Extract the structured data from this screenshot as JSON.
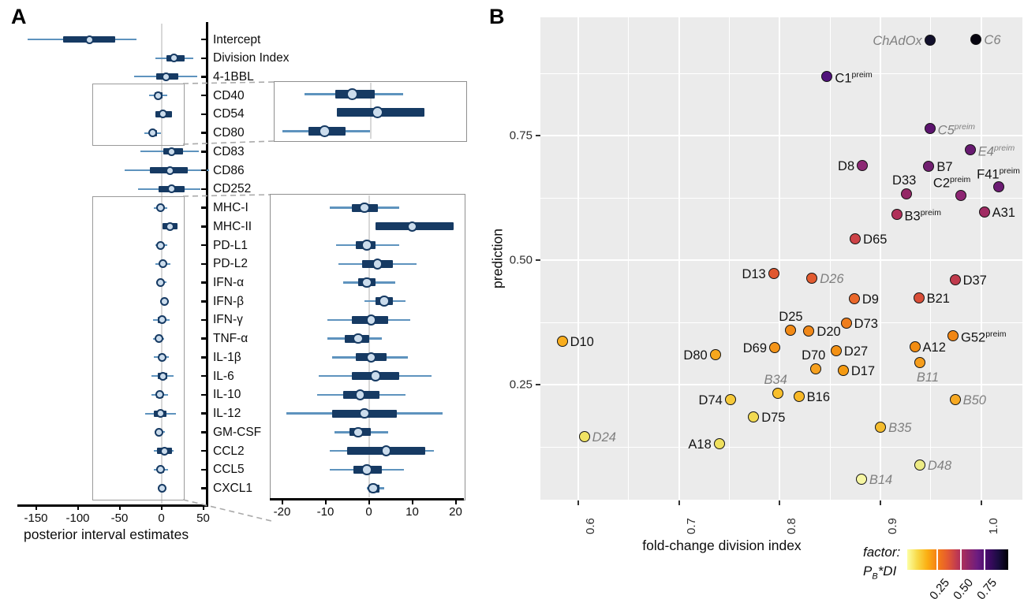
{
  "figure": {
    "panel_a_label": "A",
    "panel_b_label": "B"
  },
  "chart_data": [
    {
      "type": "forest",
      "panel": "A",
      "xlabel": "posterior interval estimates",
      "x_ticks": [
        "-150",
        "-100",
        "-50",
        "0",
        "50"
      ],
      "inset_x_ticks": [
        "-20",
        "-10",
        "0",
        "10",
        "20"
      ],
      "colors": {
        "bar": "#163a63",
        "whisker": "#5e93be",
        "dot_fill": "#cbdcec"
      },
      "rows": [
        {
          "label": "Intercept",
          "median": -86,
          "ci50": [
            -117,
            -55
          ],
          "ci95": [
            -160,
            -30
          ]
        },
        {
          "label": "Division Index",
          "median": 15,
          "ci50": [
            6,
            28
          ],
          "ci95": [
            -7,
            38
          ]
        },
        {
          "label": "4-1BBL",
          "median": 6,
          "ci50": [
            -6,
            20
          ],
          "ci95": [
            -33,
            43
          ]
        },
        {
          "label": "CD40",
          "median": -4,
          "ci50": [
            -8,
            1
          ],
          "ci95": [
            -15,
            7.5
          ],
          "inset": "top"
        },
        {
          "label": "CD54",
          "median": 1.8,
          "ci50": [
            -7.5,
            12.5
          ],
          "ci95": [
            -7.5,
            12.5
          ],
          "inset": "top"
        },
        {
          "label": "CD80",
          "median": -10.3,
          "ci50": [
            -14,
            -5.5
          ],
          "ci95": [
            -20,
            0
          ],
          "inset": "top"
        },
        {
          "label": "CD83",
          "median": 12,
          "ci50": [
            2,
            26
          ],
          "ci95": [
            -25,
            45
          ]
        },
        {
          "label": "CD86",
          "median": 10,
          "ci50": [
            -14,
            32
          ],
          "ci95": [
            -44,
            57
          ]
        },
        {
          "label": "CD252",
          "median": 12,
          "ci50": [
            -3,
            28
          ],
          "ci95": [
            -28,
            47
          ]
        },
        {
          "label": "MHC-I",
          "median": -1,
          "ci50": [
            -4,
            2
          ],
          "ci95": [
            -9,
            7
          ],
          "inset": "bottom"
        },
        {
          "label": "MHC-II",
          "median": 10,
          "ci50": [
            1.5,
            19.5
          ],
          "ci95": [
            1.5,
            19.5
          ],
          "inset": "bottom"
        },
        {
          "label": "PD-L1",
          "median": -0.5,
          "ci50": [
            -3,
            1.5
          ],
          "ci95": [
            -7.5,
            7
          ],
          "inset": "bottom"
        },
        {
          "label": "PD-L2",
          "median": 2,
          "ci50": [
            -1.5,
            5.5
          ],
          "ci95": [
            -7,
            11
          ],
          "inset": "bottom"
        },
        {
          "label": "IFN-α",
          "median": -0.5,
          "ci50": [
            -2.5,
            1.5
          ],
          "ci95": [
            -6,
            6
          ],
          "inset": "bottom"
        },
        {
          "label": "IFN-β",
          "median": 3.5,
          "ci50": [
            1.5,
            5.5
          ],
          "ci95": [
            -1,
            8.5
          ],
          "inset": "bottom"
        },
        {
          "label": "IFN-γ",
          "median": 0.5,
          "ci50": [
            -4,
            4.5
          ],
          "ci95": [
            -9.5,
            9.5
          ],
          "inset": "bottom"
        },
        {
          "label": "TNF-α",
          "median": -2.5,
          "ci50": [
            -5.5,
            0
          ],
          "ci95": [
            -9.5,
            3
          ],
          "inset": "bottom"
        },
        {
          "label": "IL-1β",
          "median": 0.5,
          "ci50": [
            -3,
            4
          ],
          "ci95": [
            -8.5,
            9
          ],
          "inset": "bottom"
        },
        {
          "label": "IL-6",
          "median": 1.5,
          "ci50": [
            -4,
            7
          ],
          "ci95": [
            -11.5,
            14.5
          ],
          "inset": "bottom"
        },
        {
          "label": "IL-10",
          "median": -2,
          "ci50": [
            -6,
            2.5
          ],
          "ci95": [
            -12,
            8.5
          ],
          "inset": "bottom"
        },
        {
          "label": "IL-12",
          "median": -1,
          "ci50": [
            -8.5,
            6.5
          ],
          "ci95": [
            -19,
            17
          ],
          "inset": "bottom"
        },
        {
          "label": "GM-CSF",
          "median": -2.5,
          "ci50": [
            -4.5,
            0.5
          ],
          "ci95": [
            -8,
            4.5
          ],
          "inset": "bottom"
        },
        {
          "label": "CCL2",
          "median": 4,
          "ci50": [
            -5,
            13
          ],
          "ci95": [
            -9,
            15
          ],
          "inset": "bottom"
        },
        {
          "label": "CCL5",
          "median": -0.5,
          "ci50": [
            -3.5,
            3
          ],
          "ci95": [
            -9,
            8
          ],
          "inset": "bottom"
        },
        {
          "label": "CXCL1",
          "median": 1,
          "ci50": [
            0,
            2.5
          ],
          "ci95": [
            -0.5,
            3.5
          ],
          "inset": "bottom"
        }
      ]
    },
    {
      "type": "scatter",
      "panel": "B",
      "xlabel": "fold-change division index",
      "ylabel": "prediction",
      "x_ticks": [
        "0.6",
        "0.7",
        "0.8",
        "0.9",
        "1.0"
      ],
      "y_ticks": [
        "0.25",
        "0.50",
        "0.75"
      ],
      "xlim": [
        0.562,
        1.041
      ],
      "ylim": [
        0.02,
        0.985
      ],
      "panel_bg": "#ebebeb",
      "point_outline": "#141414",
      "legend": {
        "title_line1": "factor:",
        "title2_p": "P",
        "title2_sub": "B",
        "title2_rest": "*DI",
        "ticks": [
          "0.25",
          "0.50",
          "0.75"
        ],
        "gradient": [
          "#fcffa4",
          "#f8d948",
          "#fbae12",
          "#f57d15",
          "#e45a31",
          "#bc3754",
          "#932667",
          "#6a1c81",
          "#420a68",
          "#1b0c41",
          "#000004"
        ]
      },
      "points": [
        {
          "label": "ChAdOx",
          "sup": "",
          "x": 0.949,
          "y": 0.941,
          "color": "#12102c",
          "pos": "left",
          "muted": true
        },
        {
          "label": "C6",
          "sup": "",
          "x": 0.995,
          "y": 0.943,
          "color": "#06040f",
          "pos": "right",
          "muted": true
        },
        {
          "label": "C1",
          "sup": "preim",
          "x": 0.847,
          "y": 0.869,
          "color": "#50127b",
          "pos": "right",
          "muted": false
        },
        {
          "label": "C5",
          "sup": "preim",
          "x": 0.949,
          "y": 0.764,
          "color": "#5c136e",
          "pos": "right",
          "muted": true
        },
        {
          "label": "E4",
          "sup": "preim",
          "x": 0.989,
          "y": 0.722,
          "color": "#671970",
          "pos": "right",
          "muted": true
        },
        {
          "label": "D8",
          "sup": "",
          "x": 0.882,
          "y": 0.69,
          "color": "#8c2974",
          "pos": "left",
          "muted": false
        },
        {
          "label": "B7",
          "sup": "",
          "x": 0.948,
          "y": 0.688,
          "color": "#711f70",
          "pos": "right",
          "muted": false
        },
        {
          "label": "D33",
          "sup": "",
          "x": 0.926,
          "y": 0.633,
          "color": "#942766",
          "pos": "above-left",
          "muted": false
        },
        {
          "label": "C2",
          "sup": "preim",
          "x": 0.98,
          "y": 0.63,
          "color": "#8e2573",
          "pos": "above-left",
          "muted": false
        },
        {
          "label": "F41",
          "sup": "preim",
          "x": 1.017,
          "y": 0.647,
          "color": "#6c1b73",
          "pos": "above",
          "muted": false
        },
        {
          "label": "B3",
          "sup": "preim",
          "x": 0.916,
          "y": 0.592,
          "color": "#b03059",
          "pos": "right",
          "muted": false
        },
        {
          "label": "A31",
          "sup": "",
          "x": 1.003,
          "y": 0.597,
          "color": "#a02b63",
          "pos": "right",
          "muted": false
        },
        {
          "label": "D65",
          "sup": "",
          "x": 0.875,
          "y": 0.543,
          "color": "#cd4247",
          "pos": "right",
          "muted": false
        },
        {
          "label": "D13",
          "sup": "",
          "x": 0.794,
          "y": 0.473,
          "color": "#e0572f",
          "pos": "left",
          "muted": false
        },
        {
          "label": "D26",
          "sup": "",
          "x": 0.832,
          "y": 0.464,
          "color": "#e25b30",
          "pos": "right",
          "muted": true
        },
        {
          "label": "D37",
          "sup": "",
          "x": 0.974,
          "y": 0.46,
          "color": "#c03a4c",
          "pos": "right",
          "muted": false
        },
        {
          "label": "D9",
          "sup": "",
          "x": 0.874,
          "y": 0.422,
          "color": "#ea672a",
          "pos": "right",
          "muted": false
        },
        {
          "label": "B21",
          "sup": "",
          "x": 0.938,
          "y": 0.424,
          "color": "#d94e38",
          "pos": "right",
          "muted": false
        },
        {
          "label": "D73",
          "sup": "",
          "x": 0.866,
          "y": 0.373,
          "color": "#ef7d1c",
          "pos": "right",
          "muted": false
        },
        {
          "label": "D25",
          "sup": "",
          "x": 0.811,
          "y": 0.359,
          "color": "#f28a16",
          "pos": "above",
          "muted": false
        },
        {
          "label": "D20",
          "sup": "",
          "x": 0.829,
          "y": 0.358,
          "color": "#f0881a",
          "pos": "right",
          "muted": false
        },
        {
          "label": "G52",
          "sup": "preim",
          "x": 0.972,
          "y": 0.348,
          "color": "#f18613",
          "pos": "right",
          "muted": false
        },
        {
          "label": "D10",
          "sup": "",
          "x": 0.584,
          "y": 0.337,
          "color": "#f8ad1e",
          "pos": "right",
          "muted": false
        },
        {
          "label": "A12",
          "sup": "",
          "x": 0.934,
          "y": 0.326,
          "color": "#f38d12",
          "pos": "right",
          "muted": false
        },
        {
          "label": "D69",
          "sup": "",
          "x": 0.795,
          "y": 0.324,
          "color": "#f4951a",
          "pos": "left",
          "muted": false
        },
        {
          "label": "D27",
          "sup": "",
          "x": 0.856,
          "y": 0.318,
          "color": "#f39114",
          "pos": "right",
          "muted": false
        },
        {
          "label": "D80",
          "sup": "",
          "x": 0.736,
          "y": 0.31,
          "color": "#f7a71d",
          "pos": "left",
          "muted": false
        },
        {
          "label": "B11",
          "sup": "",
          "x": 0.939,
          "y": 0.294,
          "color": "#f59d1c",
          "pos": "below",
          "muted": true
        },
        {
          "label": "D70",
          "sup": "",
          "x": 0.836,
          "y": 0.282,
          "color": "#f6a01e",
          "pos": "above-left",
          "muted": false
        },
        {
          "label": "D17",
          "sup": "",
          "x": 0.863,
          "y": 0.278,
          "color": "#f49a12",
          "pos": "right",
          "muted": false
        },
        {
          "label": "B34",
          "sup": "",
          "x": 0.798,
          "y": 0.233,
          "color": "#f8bf2b",
          "pos": "above-left",
          "muted": true
        },
        {
          "label": "B16",
          "sup": "",
          "x": 0.819,
          "y": 0.226,
          "color": "#f8b827",
          "pos": "right",
          "muted": false
        },
        {
          "label": "D74",
          "sup": "",
          "x": 0.751,
          "y": 0.22,
          "color": "#f6c93a",
          "pos": "left",
          "muted": false
        },
        {
          "label": "B50",
          "sup": "",
          "x": 0.974,
          "y": 0.22,
          "color": "#f7a922",
          "pos": "right",
          "muted": true
        },
        {
          "label": "D75",
          "sup": "",
          "x": 0.774,
          "y": 0.185,
          "color": "#f2da52",
          "pos": "right",
          "muted": false
        },
        {
          "label": "B35",
          "sup": "",
          "x": 0.9,
          "y": 0.165,
          "color": "#f4bc2e",
          "pos": "right",
          "muted": true
        },
        {
          "label": "D24",
          "sup": "",
          "x": 0.606,
          "y": 0.146,
          "color": "#f0e363",
          "pos": "right",
          "muted": true
        },
        {
          "label": "A18",
          "sup": "",
          "x": 0.74,
          "y": 0.131,
          "color": "#efe05e",
          "pos": "left",
          "muted": false
        },
        {
          "label": "D48",
          "sup": "",
          "x": 0.939,
          "y": 0.089,
          "color": "#edeb84",
          "pos": "right",
          "muted": true
        },
        {
          "label": "B14",
          "sup": "",
          "x": 0.881,
          "y": 0.06,
          "color": "#f6f6a3",
          "pos": "right",
          "muted": true
        }
      ]
    }
  ]
}
